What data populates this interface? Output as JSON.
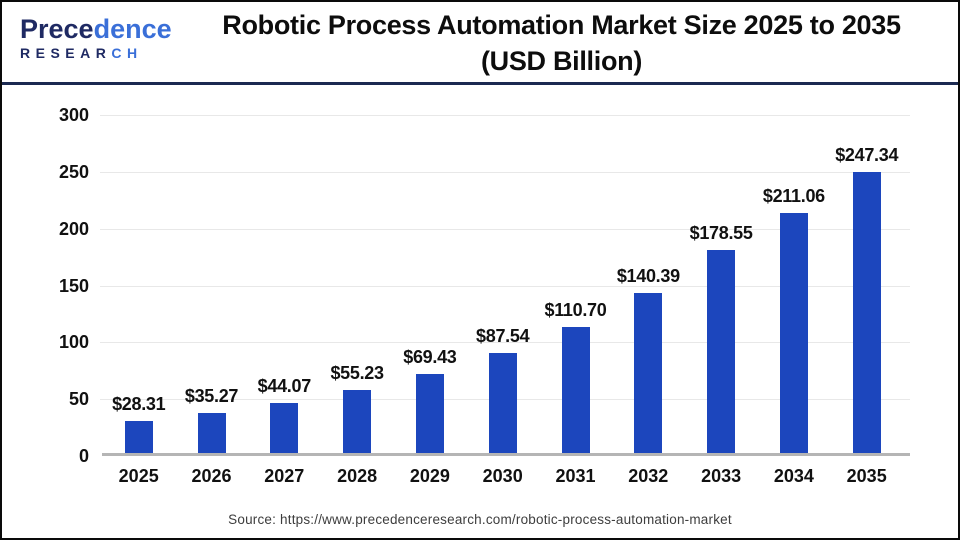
{
  "header": {
    "logo": {
      "name_primary": "Prece",
      "name_secondary": "dence",
      "sub_primary": "RESEAR",
      "sub_secondary": "CH"
    },
    "title_line1": "Robotic Process Automation Market Size 2025 to 2035",
    "title_line2": "(USD Billion)"
  },
  "chart_data": {
    "type": "bar",
    "title": "Robotic Process Automation Market Size 2025 to 2035 (USD Billion)",
    "categories": [
      "2025",
      "2026",
      "2027",
      "2028",
      "2029",
      "2030",
      "2031",
      "2032",
      "2033",
      "2034",
      "2035"
    ],
    "values": [
      28.31,
      35.27,
      44.07,
      55.23,
      69.43,
      87.54,
      110.7,
      140.39,
      178.55,
      211.06,
      247.34
    ],
    "value_labels": [
      "$28.31",
      "$35.27",
      "$44.07",
      "$55.23",
      "$69.43",
      "$87.54",
      "$110.70",
      "$140.39",
      "$178.55",
      "$211.06",
      "$247.34"
    ],
    "xlabel": "",
    "ylabel": "",
    "ylim": [
      0,
      300
    ],
    "yticks": [
      0,
      50,
      100,
      150,
      200,
      250,
      300
    ],
    "grid": true,
    "legend": false,
    "bar_color": "#1c46bd"
  },
  "source": {
    "text": "Source: https://www.precedenceresearch.com/robotic-process-automation-market"
  }
}
